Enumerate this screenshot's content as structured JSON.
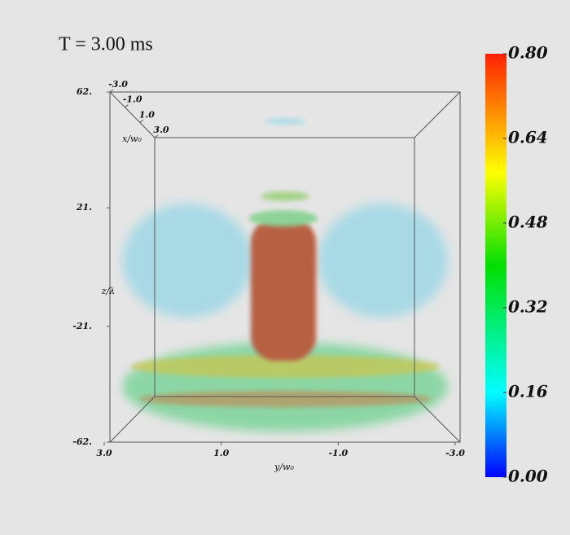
{
  "chart_data": {
    "type": "volume",
    "title": "T = 3.00 ms",
    "x_label": "x/w₀",
    "y_label": "y/w₀",
    "z_label": "z/λ",
    "xlim": [
      -3,
      3
    ],
    "xticks": [
      {
        "value": -3,
        "label": "-3.0"
      },
      {
        "value": -1,
        "label": "-1.0"
      },
      {
        "value": 1,
        "label": "1.0"
      },
      {
        "value": 3,
        "label": "3.0"
      }
    ],
    "ylim": [
      3,
      -3
    ],
    "yticks": [
      {
        "value": 3,
        "label": "3.0"
      },
      {
        "value": 1,
        "label": "1.0"
      },
      {
        "value": -1,
        "label": "-1.0"
      },
      {
        "value": -3,
        "label": "-3.0"
      }
    ],
    "zlim": [
      -62,
      62
    ],
    "zticks": [
      {
        "value": 62,
        "label": "62."
      },
      {
        "value": 21,
        "label": "21."
      },
      {
        "value": -21,
        "label": "-21."
      },
      {
        "value": -62,
        "label": "-62."
      }
    ],
    "colorbar_lim": [
      0,
      0.8
    ],
    "colorbar_ticks": [
      {
        "value": 0.8,
        "label": "0.80"
      },
      {
        "value": 0.64,
        "label": "0.64"
      },
      {
        "value": 0.48,
        "label": "0.48"
      },
      {
        "value": 0.32,
        "label": "0.32"
      },
      {
        "value": 0.16,
        "label": "0.16"
      },
      {
        "value": 0,
        "label": "0.00"
      }
    ]
  }
}
